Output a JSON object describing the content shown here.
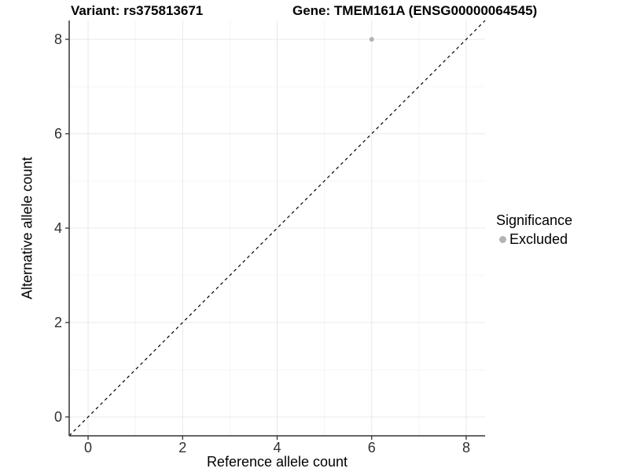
{
  "chart_data": {
    "type": "scatter",
    "title_left": "Variant: rs375813671",
    "title_right": "Gene: TMEM161A (ENSG00000064545)",
    "xlabel": "Reference allele count",
    "ylabel": "Alternative allele count",
    "xlim": [
      -0.4,
      8.4
    ],
    "ylim": [
      -0.4,
      8.4
    ],
    "x_major_ticks": [
      0,
      2,
      4,
      6,
      8
    ],
    "y_major_ticks": [
      0,
      2,
      4,
      6,
      8
    ],
    "x_minor_ticks": [
      1,
      3,
      5,
      7
    ],
    "y_minor_ticks": [
      1,
      3,
      5,
      7
    ],
    "grid": true,
    "points": [
      {
        "x": 6,
        "y": 8,
        "series": "Excluded"
      }
    ],
    "identity_line": {
      "style": "dashed",
      "from": [
        -0.4,
        -0.4
      ],
      "to": [
        8.4,
        8.4
      ],
      "color": "#000000"
    },
    "legend": {
      "title": "Significance",
      "position": "right",
      "entries": [
        {
          "label": "Excluded",
          "color": "#b3b3b3"
        }
      ]
    },
    "colors": {
      "point": "#b3b3b3",
      "grid_major": "#e8e8e8",
      "grid_minor": "#f4f4f4",
      "axis_line": "#333333",
      "tick_label": "#303030",
      "background": "#ffffff"
    }
  }
}
